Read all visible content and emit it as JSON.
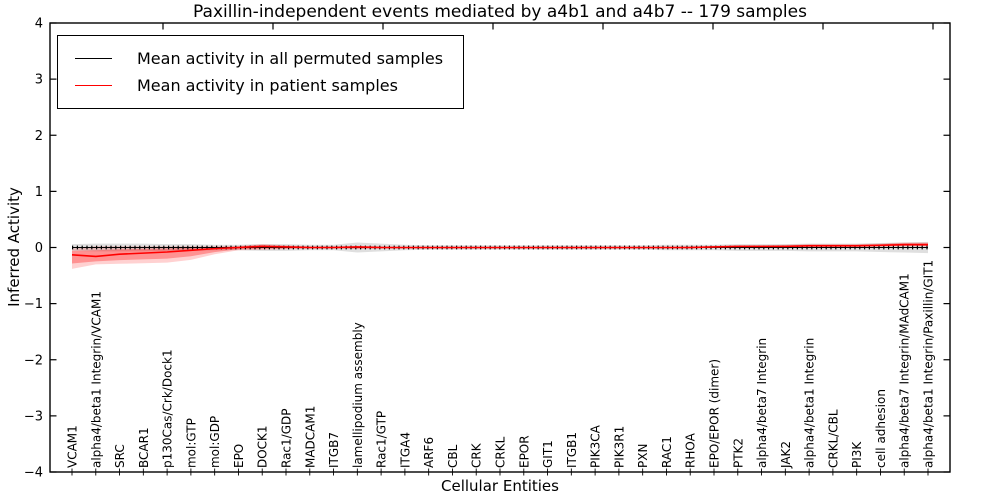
{
  "chart_data": {
    "type": "line",
    "title": "Paxillin-independent events mediated by a4b1 and a4b7 -- 179 samples",
    "xlabel": "Cellular Entities",
    "ylabel": "Inferred Activity",
    "ylim": [
      -4,
      4
    ],
    "yticks": [
      -4,
      -3,
      -2,
      -1,
      0,
      1,
      2,
      3,
      4
    ],
    "grid": false,
    "legend_position": "upper-left",
    "categories": [
      "VCAM1",
      "alpha4/beta1 Integrin/VCAM1",
      "SRC",
      "BCAR1",
      "p130Cas/Crk/Dock1",
      "mol:GTP",
      "mol:GDP",
      "EPO",
      "DOCK1",
      "Rac1/GDP",
      "MADCAM1",
      "ITGB7",
      "lamellipodium assembly",
      "Rac1/GTP",
      "ITGA4",
      "ARF6",
      "CBL",
      "CRK",
      "CRKL",
      "EPOR",
      "GIT1",
      "ITGB1",
      "PIK3CA",
      "PIK3R1",
      "PXN",
      "RAC1",
      "RHOA",
      "EPO/EPOR (dimer)",
      "PTK2",
      "alpha4/beta7 Integrin",
      "JAK2",
      "alpha4/beta1 Integrin",
      "CRKL/CBL",
      "PI3K",
      "cell adhesion",
      "alpha4/beta7 Integrin/MAdCAM1",
      "alpha4/beta1 Integrin/Paxillin/GIT1"
    ],
    "series": [
      {
        "name": "Mean activity in all permuted samples",
        "color": "#000000",
        "marker": "tick",
        "values": [
          0,
          0,
          0,
          0,
          0,
          0,
          0,
          0,
          0,
          0,
          0,
          0,
          0,
          0,
          0,
          0,
          0,
          0,
          0,
          0,
          0,
          0,
          0,
          0,
          0,
          0,
          0,
          0,
          0,
          0,
          0,
          0,
          0,
          0,
          0,
          0,
          0
        ]
      },
      {
        "name": "Mean activity in patient samples",
        "color": "#ff0000",
        "marker": "none",
        "values": [
          -0.13,
          -0.16,
          -0.12,
          -0.1,
          -0.08,
          -0.05,
          -0.02,
          0,
          0.02,
          0.01,
          0,
          0,
          0.01,
          0,
          0,
          0,
          0,
          0,
          0,
          0,
          0,
          0,
          0,
          0,
          0,
          0,
          0,
          0.01,
          0.02,
          0.02,
          0.02,
          0.03,
          0.03,
          0.03,
          0.04,
          0.05,
          0.05
        ]
      }
    ],
    "bands": [
      {
        "name": "permuted-range",
        "color": "#8c8c8c",
        "opacity": 0.28,
        "low": [
          -0.06,
          -0.07,
          -0.07,
          -0.07,
          -0.06,
          -0.06,
          -0.05,
          -0.05,
          -0.06,
          -0.06,
          -0.05,
          -0.05,
          -0.09,
          -0.07,
          -0.05,
          -0.04,
          -0.04,
          -0.04,
          -0.04,
          -0.04,
          -0.04,
          -0.04,
          -0.04,
          -0.04,
          -0.04,
          -0.05,
          -0.05,
          -0.05,
          -0.06,
          -0.06,
          -0.06,
          -0.07,
          -0.07,
          -0.07,
          -0.08,
          -0.09,
          -0.1
        ],
        "high": [
          0.06,
          0.07,
          0.07,
          0.07,
          0.06,
          0.06,
          0.05,
          0.05,
          0.06,
          0.06,
          0.05,
          0.05,
          0.09,
          0.07,
          0.05,
          0.04,
          0.04,
          0.04,
          0.04,
          0.04,
          0.04,
          0.04,
          0.04,
          0.04,
          0.04,
          0.05,
          0.05,
          0.05,
          0.06,
          0.06,
          0.06,
          0.07,
          0.07,
          0.07,
          0.08,
          0.09,
          0.1
        ]
      },
      {
        "name": "patient-range",
        "color": "#ff0000",
        "opacity": 0.18,
        "low": [
          -0.38,
          -0.3,
          -0.29,
          -0.28,
          -0.27,
          -0.22,
          -0.12,
          -0.05,
          -0.04,
          -0.03,
          -0.02,
          -0.02,
          -0.03,
          -0.02,
          -0.02,
          -0.02,
          -0.02,
          -0.02,
          -0.02,
          -0.02,
          -0.02,
          -0.02,
          -0.02,
          -0.02,
          -0.02,
          -0.02,
          -0.02,
          -0.01,
          0,
          0,
          0,
          0.01,
          0.01,
          0.01,
          0.01,
          0.02,
          0.02
        ],
        "high": [
          -0.02,
          0.02,
          0.02,
          0.02,
          0.02,
          0.02,
          0.02,
          0.03,
          0.06,
          0.04,
          0.02,
          0.02,
          0.03,
          0.02,
          0.01,
          0.01,
          0.01,
          0.01,
          0.01,
          0.01,
          0.01,
          0.01,
          0.01,
          0.01,
          0.01,
          0.01,
          0.02,
          0.03,
          0.04,
          0.04,
          0.05,
          0.06,
          0.06,
          0.06,
          0.07,
          0.09,
          0.09
        ]
      }
    ]
  }
}
